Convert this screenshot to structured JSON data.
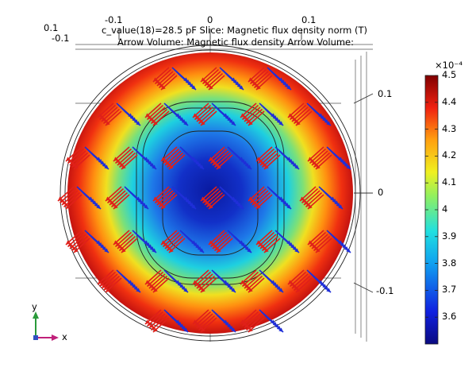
{
  "header": {
    "line1": "c_value(18)=28.5 pF   Slice: Magnetic flux density norm (T)",
    "line2": "Arrow Volume: Magnetic flux density  Arrow Volume:"
  },
  "top_axis": {
    "left_labels": [
      "0.1",
      "-0.1"
    ],
    "ticks": [
      "-0.1",
      "0",
      "0.1"
    ]
  },
  "right_axis": {
    "ticks": [
      "0.1",
      "0",
      "-0.1"
    ]
  },
  "triad": {
    "y_label": "y",
    "x_label": "x"
  },
  "colors": {
    "arrow_red": "#e0201a",
    "arrow_blue": "#1f2fd8",
    "outline": "#333333"
  },
  "chart_data": {
    "type": "heatmap",
    "title": "Slice: Magnetic flux density norm (T)",
    "parameter": "c_value(18)=28.5 pF",
    "arrow_plots": [
      "Arrow Volume: Magnetic flux density",
      "Arrow Volume:"
    ],
    "colormap": "rainbow",
    "colorbar": {
      "multiplier": "×10⁻⁴",
      "tick_labels": [
        "4.5",
        "4.4",
        "4.3",
        "4.2",
        "4.1",
        "4",
        "3.9",
        "3.8",
        "3.7",
        "3.6"
      ],
      "min": 3.5,
      "max": 4.5
    },
    "x_ticks": [
      "-0.1",
      "0",
      "0.1"
    ],
    "y_ticks": [
      "0.1",
      "0",
      "-0.1"
    ],
    "field": "circular cross-section, minimum (≈3.5e-4 T) at center, maximum (≈4.5e-4 T) at outer edge"
  }
}
